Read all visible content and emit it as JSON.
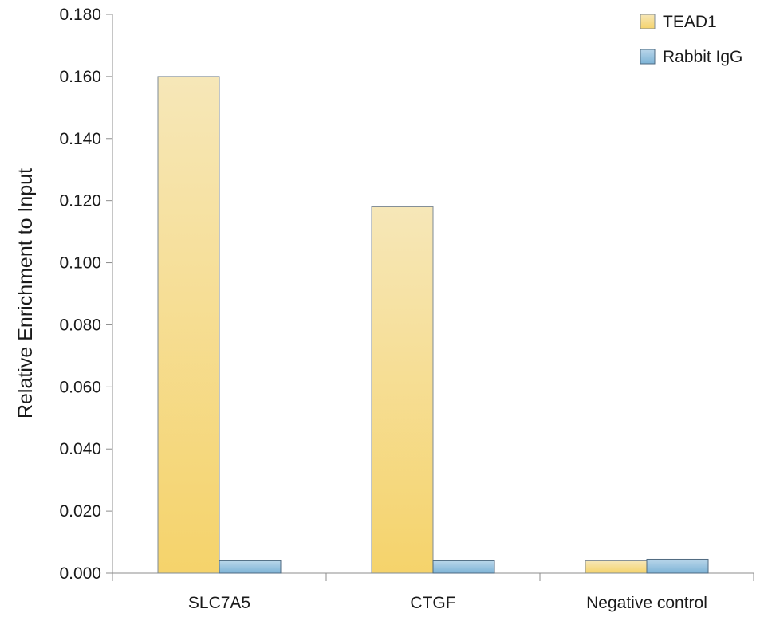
{
  "chart_data": {
    "type": "bar",
    "categories": [
      "SLC7A5",
      "CTGF",
      "Negative control"
    ],
    "series": [
      {
        "name": "TEAD1",
        "values": [
          0.16,
          0.118,
          0.004
        ],
        "color_top": "#f6e7b8",
        "color_bottom": "#f5d36b",
        "stroke": "#7f8b96"
      },
      {
        "name": "Rabbit IgG",
        "values": [
          0.004,
          0.004,
          0.0045
        ],
        "color_top": "#b9d6ea",
        "color_bottom": "#7db3d6",
        "stroke": "#4f6a80"
      }
    ],
    "title": "",
    "xlabel": "",
    "ylabel": "Relative Enrichment to Input",
    "ylim": [
      0,
      0.18
    ],
    "yticks": [
      "0.000",
      "0.020",
      "0.040",
      "0.060",
      "0.080",
      "0.100",
      "0.120",
      "0.140",
      "0.160",
      "0.180"
    ],
    "grid": false,
    "legend_position": "top-right"
  }
}
